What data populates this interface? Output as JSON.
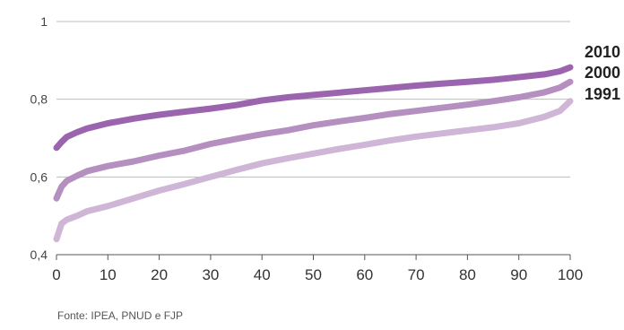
{
  "chart_data": {
    "type": "line",
    "title": "",
    "xlabel": "",
    "ylabel": "",
    "xlim": [
      0,
      100
    ],
    "ylim": [
      0.4,
      1.0
    ],
    "x_ticks": [
      "0",
      "10",
      "20",
      "30",
      "40",
      "50",
      "60",
      "70",
      "80",
      "90",
      "100"
    ],
    "y_ticks": [
      "0,4",
      "0,6",
      "0,8",
      "1"
    ],
    "grid": "horizontal",
    "legend": "right, at line ends",
    "series": [
      {
        "name": "2010",
        "color": "#9b64ae",
        "points": [
          [
            0,
            0.675
          ],
          [
            1,
            0.69
          ],
          [
            2,
            0.703
          ],
          [
            4,
            0.715
          ],
          [
            6,
            0.725
          ],
          [
            10,
            0.738
          ],
          [
            15,
            0.75
          ],
          [
            20,
            0.76
          ],
          [
            25,
            0.768
          ],
          [
            30,
            0.776
          ],
          [
            35,
            0.785
          ],
          [
            40,
            0.797
          ],
          [
            45,
            0.805
          ],
          [
            50,
            0.811
          ],
          [
            55,
            0.817
          ],
          [
            60,
            0.823
          ],
          [
            65,
            0.829
          ],
          [
            70,
            0.835
          ],
          [
            75,
            0.84
          ],
          [
            80,
            0.845
          ],
          [
            85,
            0.85
          ],
          [
            90,
            0.857
          ],
          [
            95,
            0.864
          ],
          [
            98,
            0.872
          ],
          [
            100,
            0.882
          ]
        ]
      },
      {
        "name": "2000",
        "color": "#b48fc0",
        "points": [
          [
            0,
            0.545
          ],
          [
            1,
            0.575
          ],
          [
            2,
            0.59
          ],
          [
            4,
            0.603
          ],
          [
            6,
            0.615
          ],
          [
            10,
            0.628
          ],
          [
            15,
            0.64
          ],
          [
            20,
            0.655
          ],
          [
            25,
            0.668
          ],
          [
            30,
            0.685
          ],
          [
            35,
            0.698
          ],
          [
            40,
            0.71
          ],
          [
            45,
            0.72
          ],
          [
            50,
            0.733
          ],
          [
            55,
            0.743
          ],
          [
            60,
            0.752
          ],
          [
            65,
            0.762
          ],
          [
            70,
            0.77
          ],
          [
            75,
            0.778
          ],
          [
            80,
            0.786
          ],
          [
            85,
            0.795
          ],
          [
            90,
            0.805
          ],
          [
            95,
            0.818
          ],
          [
            98,
            0.83
          ],
          [
            100,
            0.845
          ]
        ]
      },
      {
        "name": "1991",
        "color": "#cfb5d6",
        "points": [
          [
            0,
            0.44
          ],
          [
            1,
            0.48
          ],
          [
            2,
            0.49
          ],
          [
            4,
            0.5
          ],
          [
            6,
            0.512
          ],
          [
            10,
            0.525
          ],
          [
            15,
            0.545
          ],
          [
            20,
            0.565
          ],
          [
            25,
            0.582
          ],
          [
            30,
            0.6
          ],
          [
            35,
            0.618
          ],
          [
            40,
            0.635
          ],
          [
            45,
            0.648
          ],
          [
            50,
            0.66
          ],
          [
            55,
            0.672
          ],
          [
            60,
            0.683
          ],
          [
            65,
            0.694
          ],
          [
            70,
            0.704
          ],
          [
            75,
            0.712
          ],
          [
            80,
            0.72
          ],
          [
            85,
            0.728
          ],
          [
            90,
            0.738
          ],
          [
            95,
            0.755
          ],
          [
            98,
            0.77
          ],
          [
            100,
            0.795
          ]
        ]
      }
    ]
  },
  "source": "Fonte: IPEA, PNUD e FJP"
}
